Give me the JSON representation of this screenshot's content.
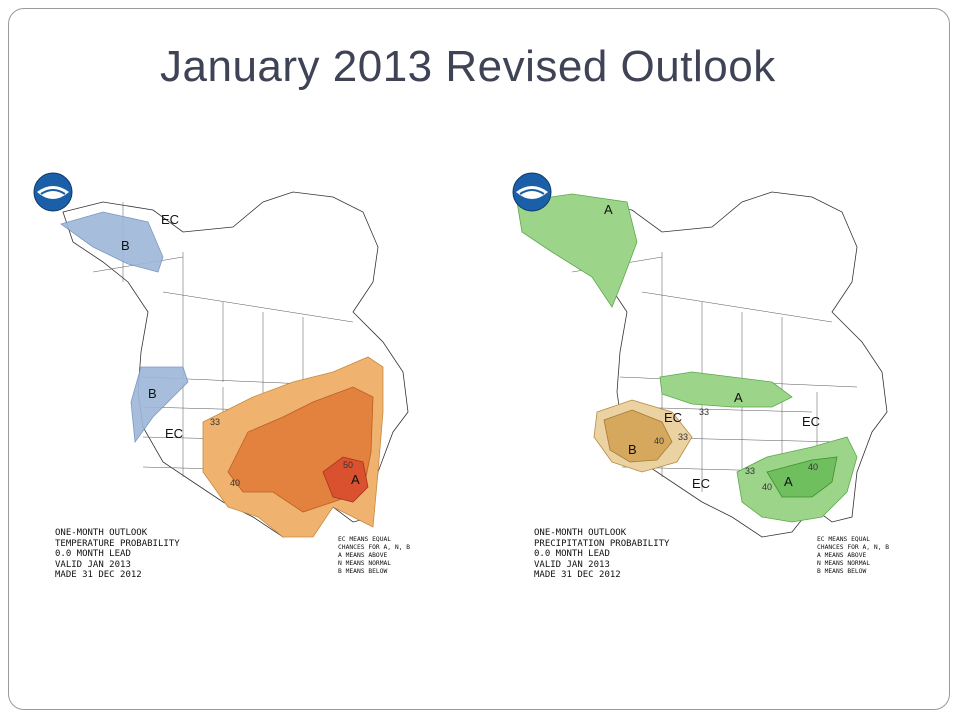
{
  "slide": {
    "title": "January 2013 Revised Outlook"
  },
  "colors": {
    "temp_below": "#9db7d9",
    "temp_above_33": "#f0b36f",
    "temp_above_40": "#e3823e",
    "temp_above_50": "#d9512f",
    "precip_above_33": "#9cd58a",
    "precip_above_40": "#6fbf5e",
    "precip_below_33": "#ead2a2",
    "precip_below_40": "#d6a85e"
  },
  "temperature_map": {
    "caption": [
      "ONE-MONTH OUTLOOK",
      "TEMPERATURE PROBABILITY",
      "0.0 MONTH LEAD",
      "VALID JAN 2013",
      "MADE 31 DEC 2012"
    ],
    "legend": [
      "EC MEANS EQUAL",
      "CHANCES FOR A, N, B",
      "A MEANS ABOVE",
      "N MEANS NORMAL",
      "B MEANS BELOW"
    ],
    "labels": {
      "ec_north": "EC",
      "b_alaska": "B",
      "b_pacific_nw": "B",
      "ec_west": "EC",
      "c33": "33",
      "c40": "40",
      "c50": "50",
      "a_southeast": "A"
    }
  },
  "precipitation_map": {
    "caption": [
      "ONE-MONTH OUTLOOK",
      "PRECIPITATION PROBABILITY",
      "0.0 MONTH LEAD",
      "VALID JAN 2013",
      "MADE 31 DEC 2012"
    ],
    "legend": [
      "EC MEANS EQUAL",
      "CHANCES FOR A, N, B",
      "A MEANS ABOVE",
      "N MEANS NORMAL",
      "B MEANS BELOW"
    ],
    "labels": {
      "a_alaska": "A",
      "ec_north": "EC",
      "a_great_lakes": "A",
      "c33_lakes": "33",
      "ec_northeast": "EC",
      "b_southwest": "B",
      "c40_sw": "40",
      "c33_sw": "33",
      "ec_south": "EC",
      "c33_se": "33",
      "c40_se": "40",
      "a_southeast": "A",
      "c40_se2": "40"
    }
  }
}
